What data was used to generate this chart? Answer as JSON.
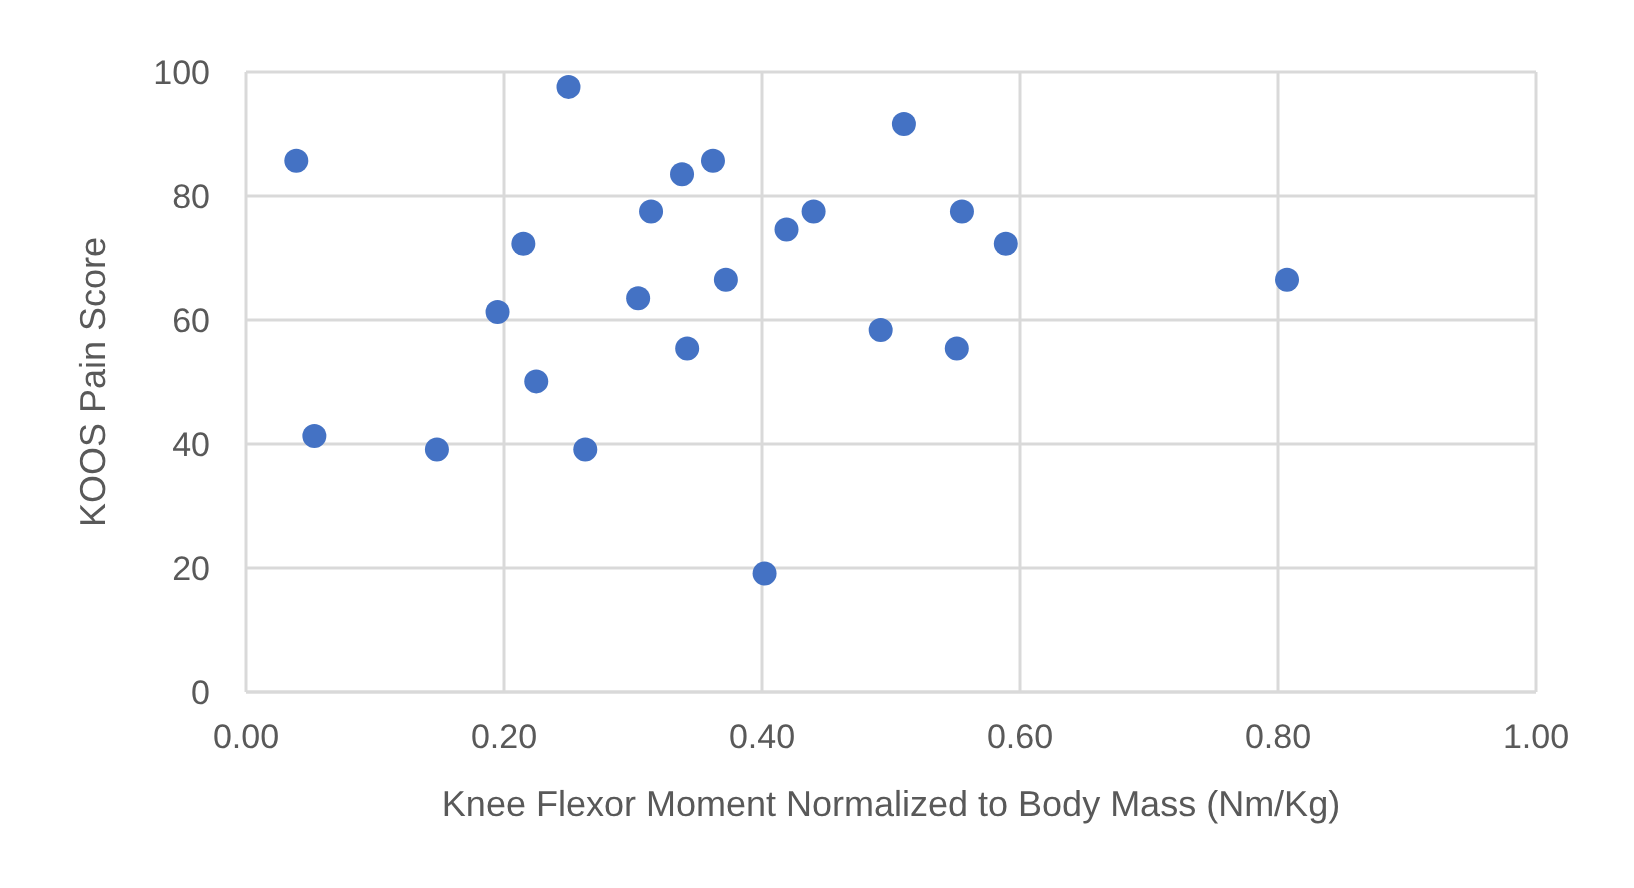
{
  "chart_data": {
    "type": "scatter",
    "xlabel": "Knee Flexor Moment Normalized to Body Mass (Nm/Kg)",
    "ylabel": "KOOS Pain Score",
    "x": [
      0.039,
      0.053,
      0.148,
      0.195,
      0.215,
      0.225,
      0.25,
      0.263,
      0.304,
      0.314,
      0.338,
      0.342,
      0.362,
      0.372,
      0.402,
      0.419,
      0.44,
      0.492,
      0.51,
      0.555,
      0.589,
      0.551,
      0.807
    ],
    "values": [
      85.7,
      41.3,
      39.1,
      61.3,
      72.3,
      50.1,
      97.6,
      39.1,
      63.5,
      77.5,
      83.5,
      55.4,
      85.7,
      66.5,
      19.1,
      74.6,
      77.5,
      58.4,
      91.6,
      77.5,
      72.3,
      55.4,
      66.5
    ],
    "color": "#4472c4",
    "marker": "circle",
    "xlim": [
      0,
      1
    ],
    "xticks": [
      {
        "value": 0,
        "label": "0.00"
      },
      {
        "value": 0.2,
        "label": "0.20"
      },
      {
        "value": 0.4,
        "label": "0.40"
      },
      {
        "value": 0.6,
        "label": "0.60"
      },
      {
        "value": 0.8,
        "label": "0.80"
      },
      {
        "value": 1,
        "label": "1.00"
      }
    ],
    "ylim": [
      0,
      100
    ],
    "yticks": [
      0,
      20,
      40,
      60,
      80,
      100
    ],
    "grid": true
  }
}
